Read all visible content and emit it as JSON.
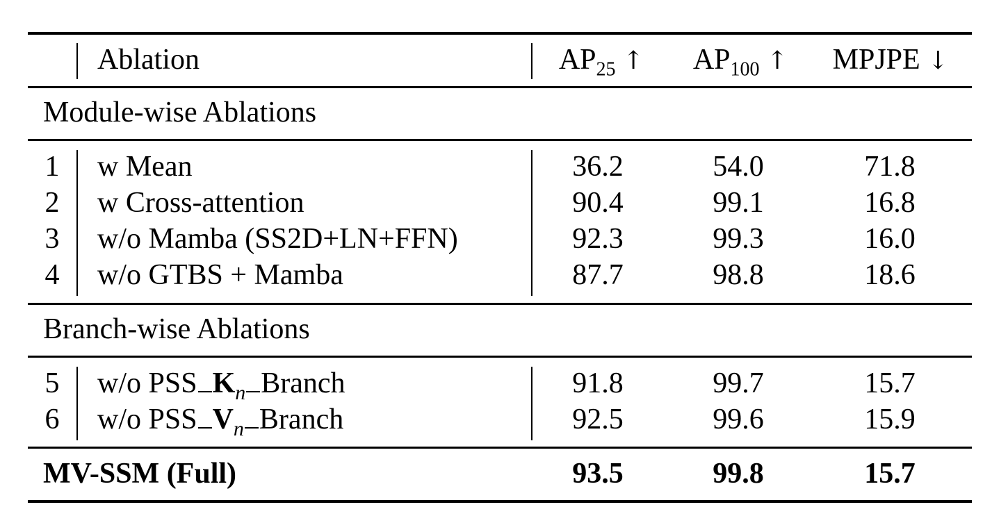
{
  "header": {
    "ablation": "Ablation",
    "ap25_base": "AP",
    "ap25_sub": "25",
    "ap25_arrow": "↑",
    "ap100_base": "AP",
    "ap100_sub": "100",
    "ap100_arrow": "↑",
    "mpjpe": "MPJPE",
    "mpjpe_arrow": "↓"
  },
  "sections": {
    "module": "Module-wise Ablations",
    "branch": "Branch-wise Ablations"
  },
  "module_rows": [
    {
      "idx": "1",
      "ablation": "w Mean",
      "ap25": "36.2",
      "ap100": "54.0",
      "mpjpe": "71.8"
    },
    {
      "idx": "2",
      "ablation": "w Cross-attention",
      "ap25": "90.4",
      "ap100": "99.1",
      "mpjpe": "16.8"
    },
    {
      "idx": "3",
      "ablation": "w/o Mamba (SS2D+LN+FFN)",
      "ap25": "92.3",
      "ap100": "99.3",
      "mpjpe": "16.0"
    },
    {
      "idx": "4",
      "ablation": "w/o GTBS + Mamba",
      "ap25": "87.7",
      "ap100": "98.8",
      "mpjpe": "18.6"
    }
  ],
  "branch_rows": [
    {
      "idx": "5",
      "prefix": "w/o PSS",
      "letter": "K",
      "sub": "n",
      "suffix": "Branch",
      "ap25": "91.8",
      "ap100": "99.7",
      "mpjpe": "15.7"
    },
    {
      "idx": "6",
      "prefix": "w/o PSS",
      "letter": "V",
      "sub": "n",
      "suffix": "Branch",
      "ap25": "92.5",
      "ap100": "99.6",
      "mpjpe": "15.9"
    }
  ],
  "full_row": {
    "label": "MV-SSM (Full)",
    "ap25": "93.5",
    "ap100": "99.8",
    "mpjpe": "15.7"
  }
}
